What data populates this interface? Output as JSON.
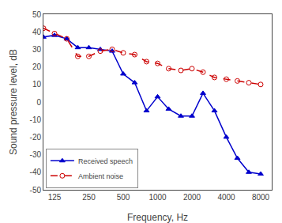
{
  "chart_data": {
    "type": "line",
    "xlabel": "Frequency, Hz",
    "ylabel": "Sound pressure level, dB",
    "x": [
      100,
      125,
      160,
      200,
      250,
      315,
      400,
      500,
      630,
      800,
      1000,
      1250,
      1600,
      2000,
      2500,
      3150,
      4000,
      5000,
      6300,
      8000
    ],
    "series": [
      {
        "name": "Received speech",
        "color": "#0000cc",
        "marker": "triangle",
        "line_style": "solid",
        "values": [
          37,
          38,
          36,
          31,
          31,
          30,
          29,
          16,
          11,
          -5,
          3,
          -4,
          -8,
          -8,
          5,
          -5,
          -20,
          -32,
          -40,
          -41
        ]
      },
      {
        "name": "Ambient noise",
        "color": "#cc0000",
        "marker": "open_circle",
        "line_style": "dashed",
        "values": [
          42,
          39,
          36,
          26,
          26,
          29,
          30,
          28,
          27,
          23,
          22,
          19,
          18,
          19,
          17,
          14,
          13,
          12,
          11,
          10
        ]
      }
    ],
    "log": "x",
    "xlim": [
      100,
      10000
    ],
    "xticks": [
      125,
      250,
      500,
      1000,
      2000,
      4000,
      8000
    ],
    "ylim": [
      -50,
      50
    ],
    "yticks": [
      -50,
      -40,
      -30,
      -20,
      -10,
      0,
      10,
      20,
      30,
      40,
      50
    ],
    "grid": false,
    "legend": "lower left"
  }
}
